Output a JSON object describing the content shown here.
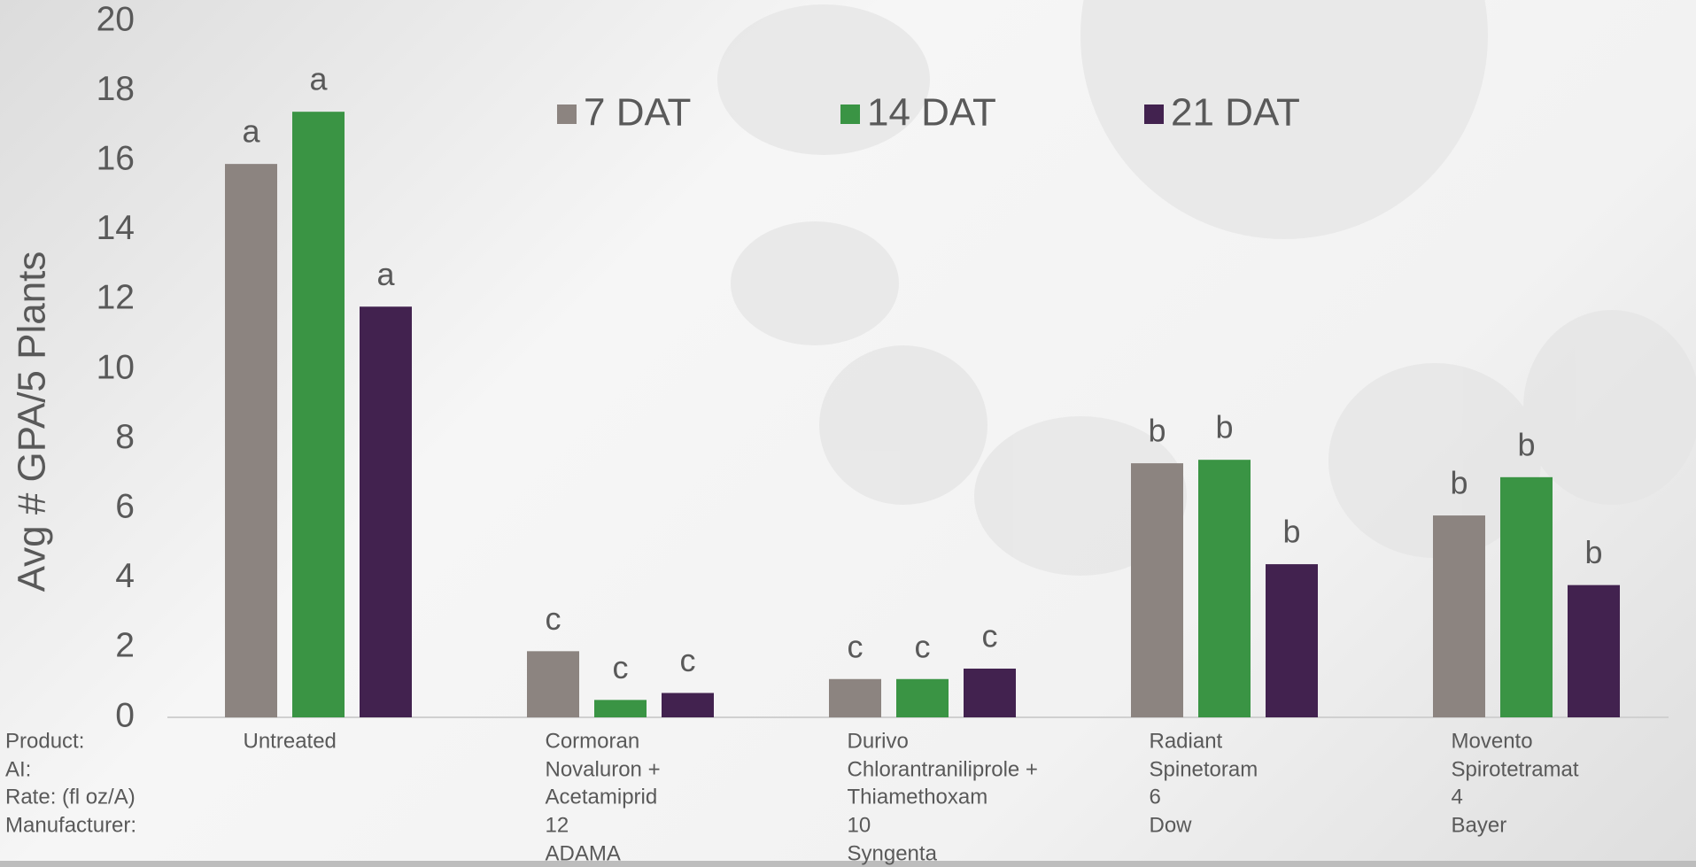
{
  "chart_data": {
    "type": "bar",
    "y_axis_label": "Avg # GPA/5 Plants",
    "categories": [
      "Untreated",
      "Cormoran",
      "Durivo",
      "Radiant",
      "Movento"
    ],
    "row_labels": [
      "Product:",
      "AI:",
      "Rate: (fl oz/A)",
      "Manufacturer:"
    ],
    "category_details": [
      [],
      [
        "Novaluron +",
        "Acetamiprid",
        "12",
        "ADAMA"
      ],
      [
        "Chlorantraniliprole +",
        "Thiamethoxam",
        "10",
        "Syngenta"
      ],
      [
        "Spinetoram",
        "6",
        "Dow"
      ],
      [
        "Spirotetramat",
        "4",
        "Bayer"
      ]
    ],
    "series": [
      {
        "name": "7 DAT",
        "color": "#8c8480",
        "values": [
          15.9,
          1.9,
          1.1,
          7.3,
          5.8
        ],
        "letters": [
          "a",
          "c",
          "c",
          "b",
          "b"
        ]
      },
      {
        "name": "14 DAT",
        "color": "#3a9444",
        "values": [
          17.4,
          0.5,
          1.1,
          7.4,
          6.9
        ],
        "letters": [
          "a",
          "c",
          "c",
          "b",
          "b"
        ]
      },
      {
        "name": "21 DAT",
        "color": "#42224f",
        "values": [
          11.8,
          0.7,
          1.4,
          4.4,
          3.8
        ],
        "letters": [
          "a",
          "c",
          "c",
          "b",
          "b"
        ]
      }
    ],
    "ylim": [
      0,
      20
    ],
    "yticks": [
      0,
      2,
      4,
      6,
      8,
      10,
      12,
      14,
      16,
      18,
      20
    ],
    "grid": false
  }
}
